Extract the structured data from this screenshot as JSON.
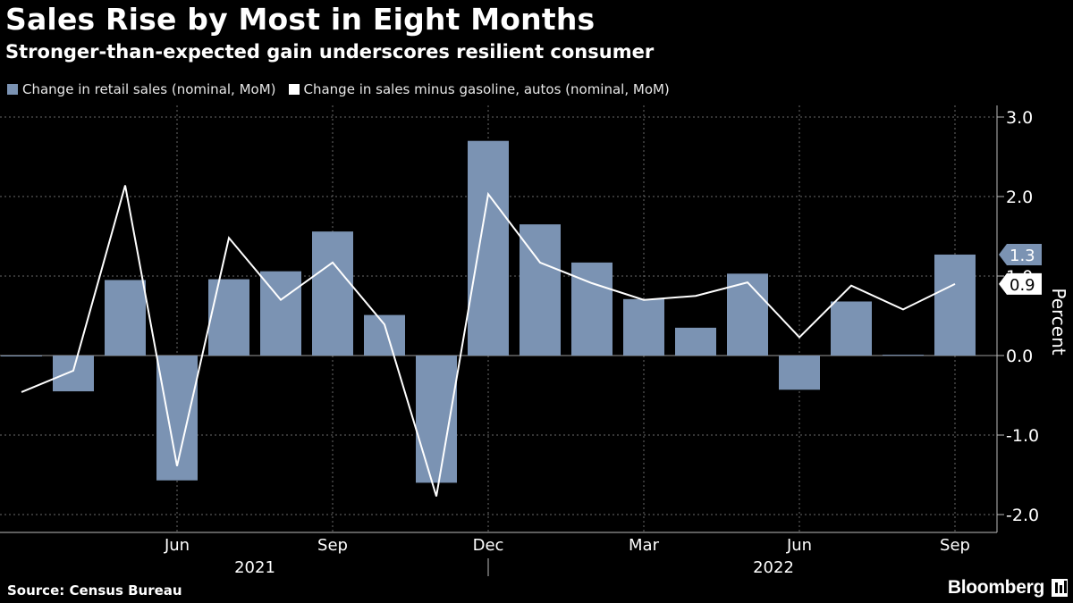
{
  "header": {
    "title": "Sales Rise by Most in Eight Months",
    "subtitle": "Stronger-than-expected gain underscores resilient consumer"
  },
  "footer": {
    "source": "Source: Census Bureau",
    "brand": "Bloomberg"
  },
  "colors": {
    "bar": "#7b93b3",
    "line": "#ffffff",
    "grid": "#6a6a6a",
    "background": "#000000"
  },
  "chart_data": {
    "type": "bar",
    "title": "Sales Rise by Most in Eight Months",
    "subtitle": "Stronger-than-expected gain underscores resilient consumer",
    "ylabel": "Percent",
    "xlabel": "",
    "ylim": [
      -2.0,
      3.0
    ],
    "yticks": [
      3.0,
      2.0,
      1.0,
      0.0,
      -1.0,
      -2.0
    ],
    "ytick_labels": [
      "3.0",
      "2.0",
      "1.0",
      "0.0",
      "-1.0",
      "-2.0"
    ],
    "categories": [
      "Mar 2021",
      "Apr 2021",
      "May 2021",
      "Jun 2021",
      "Jul 2021",
      "Aug 2021",
      "Sep 2021",
      "Oct 2021",
      "Nov 2021",
      "Dec 2021",
      "Jan 2022",
      "Feb 2022",
      "Mar 2022",
      "Apr 2022",
      "May 2022",
      "Jun 2022",
      "Jul 2022",
      "Aug 2022",
      "Sep 2022"
    ],
    "month_ticks": [
      {
        "index": 3,
        "label": "Jun"
      },
      {
        "index": 6,
        "label": "Sep"
      },
      {
        "index": 9,
        "label": "Dec"
      },
      {
        "index": 12,
        "label": "Mar"
      },
      {
        "index": 15,
        "label": "Jun"
      },
      {
        "index": 18,
        "label": "Sep"
      }
    ],
    "year_labels": [
      {
        "label": "2021",
        "from": 0,
        "to": 9
      },
      {
        "label": "2022",
        "from": 10,
        "to": 19
      }
    ],
    "series": [
      {
        "name": "Change in retail sales (nominal, MoM)",
        "type": "bar",
        "values": [
          0.0,
          -0.45,
          0.95,
          -1.57,
          0.96,
          1.06,
          1.56,
          0.51,
          -1.6,
          2.7,
          1.65,
          1.17,
          0.71,
          0.35,
          1.03,
          -0.43,
          0.68,
          0.01,
          1.27
        ]
      },
      {
        "name": "Change in sales minus gasoline, autos (nominal, MoM)",
        "type": "line",
        "values": [
          -0.46,
          -0.19,
          2.14,
          -1.39,
          1.48,
          0.7,
          1.17,
          0.39,
          -1.77,
          2.03,
          1.17,
          0.91,
          0.7,
          0.75,
          0.92,
          0.23,
          0.88,
          0.58,
          0.9
        ]
      }
    ],
    "value_labels": [
      {
        "series": 0,
        "text": "1.3",
        "value": 1.27
      },
      {
        "series": 1,
        "text": "0.9",
        "value": 0.9
      }
    ],
    "legend_position": "top-left"
  }
}
